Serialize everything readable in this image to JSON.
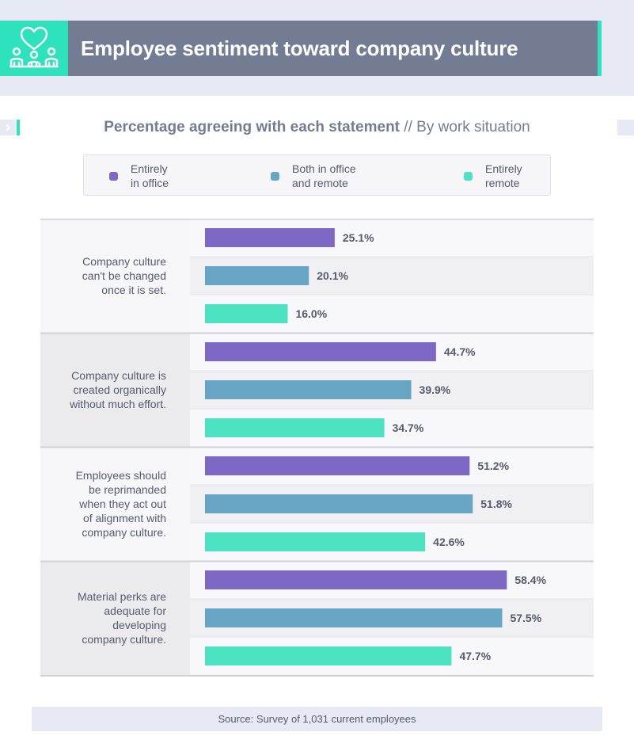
{
  "header": {
    "title": "Employee sentiment toward company culture",
    "icon": "heart-people-icon"
  },
  "subtitle": {
    "strong": "Percentage agreeing with each statement",
    "separator": "//",
    "light": "By work situation"
  },
  "legend": [
    {
      "label": "Entirely\nin office",
      "color": "#7e68c6"
    },
    {
      "label": "Both in office\nand remote",
      "color": "#68a5c5"
    },
    {
      "label": "Entirely\nremote",
      "color": "#4de2c2"
    }
  ],
  "colors": {
    "accent": "#2de2bd",
    "header_bg": "#737c93",
    "band": "#e7e9f5"
  },
  "chart_data": {
    "type": "bar",
    "orientation": "horizontal",
    "categories": [
      "Company culture\ncan't be changed\nonce it is set.",
      "Company culture is\ncreated organically\nwithout much effort.",
      "Employees should\nbe reprimanded\nwhen they act out\nof alignment with\ncompany culture.",
      "Material perks are\nadequate for\ndeveloping\ncompany culture."
    ],
    "series": [
      {
        "name": "Entirely in office",
        "color": "#7e68c6",
        "values": [
          25.1,
          44.7,
          51.2,
          58.4
        ],
        "labels": [
          "25.1%",
          "44.7%",
          "51.2%",
          "58.4%"
        ]
      },
      {
        "name": "Both in office and remote",
        "color": "#68a5c5",
        "values": [
          20.1,
          39.9,
          51.8,
          57.5
        ],
        "labels": [
          "20.1%",
          "39.9%",
          "51.8%",
          "57.5%"
        ]
      },
      {
        "name": "Entirely remote",
        "color": "#4de2c2",
        "values": [
          16.0,
          34.7,
          42.6,
          47.7
        ],
        "labels": [
          "16.0%",
          "34.7%",
          "42.6%",
          "47.7%"
        ]
      }
    ],
    "unit": "%",
    "xlim": [
      0,
      100
    ]
  },
  "source": "Source: Survey of 1,031 current employees"
}
